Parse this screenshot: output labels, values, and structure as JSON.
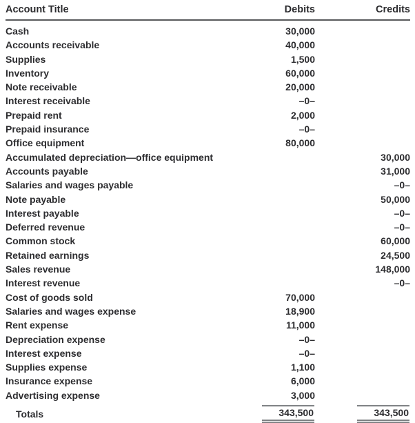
{
  "document": {
    "kind": "trial-balance-table"
  },
  "table": {
    "columns": {
      "title": "Account Title",
      "debits": "Debits",
      "credits": "Credits"
    },
    "rows": [
      {
        "title": "Cash",
        "debit": "30,000",
        "credit": ""
      },
      {
        "title": "Accounts receivable",
        "debit": "40,000",
        "credit": ""
      },
      {
        "title": "Supplies",
        "debit": "1,500",
        "credit": ""
      },
      {
        "title": "Inventory",
        "debit": "60,000",
        "credit": ""
      },
      {
        "title": "Note receivable",
        "debit": "20,000",
        "credit": ""
      },
      {
        "title": "Interest receivable",
        "debit": "–0–",
        "credit": ""
      },
      {
        "title": "Prepaid rent",
        "debit": "2,000",
        "credit": ""
      },
      {
        "title": "Prepaid insurance",
        "debit": "–0–",
        "credit": ""
      },
      {
        "title": "Office equipment",
        "debit": "80,000",
        "credit": ""
      },
      {
        "title": "Accumulated depreciation—office equipment",
        "debit": "",
        "credit": "30,000"
      },
      {
        "title": "Accounts payable",
        "debit": "",
        "credit": "31,000"
      },
      {
        "title": "Salaries and wages payable",
        "debit": "",
        "credit": "–0–"
      },
      {
        "title": "Note payable",
        "debit": "",
        "credit": "50,000"
      },
      {
        "title": "Interest payable",
        "debit": "",
        "credit": "–0–"
      },
      {
        "title": "Deferred revenue",
        "debit": "",
        "credit": "–0–"
      },
      {
        "title": "Common stock",
        "debit": "",
        "credit": "60,000"
      },
      {
        "title": "Retained earnings",
        "debit": "",
        "credit": "24,500"
      },
      {
        "title": "Sales revenue",
        "debit": "",
        "credit": "148,000"
      },
      {
        "title": "Interest revenue",
        "debit": "",
        "credit": "–0–"
      },
      {
        "title": "Cost of goods sold",
        "debit": "70,000",
        "credit": ""
      },
      {
        "title": "Salaries and wages expense",
        "debit": "18,900",
        "credit": ""
      },
      {
        "title": "Rent expense",
        "debit": "11,000",
        "credit": ""
      },
      {
        "title": "Depreciation expense",
        "debit": "–0–",
        "credit": ""
      },
      {
        "title": "Interest expense",
        "debit": "–0–",
        "credit": ""
      },
      {
        "title": "Supplies expense",
        "debit": "1,100",
        "credit": ""
      },
      {
        "title": "Insurance expense",
        "debit": "6,000",
        "credit": ""
      },
      {
        "title": "Advertising expense",
        "debit": "3,000",
        "credit": ""
      }
    ],
    "totals": {
      "label": "Totals",
      "debit": "343,500",
      "credit": "343,500"
    }
  },
  "colors": {
    "text": "#2d2d30",
    "header_rule": "#58595b",
    "total_rule": "#808285",
    "background": "#ffffff"
  }
}
